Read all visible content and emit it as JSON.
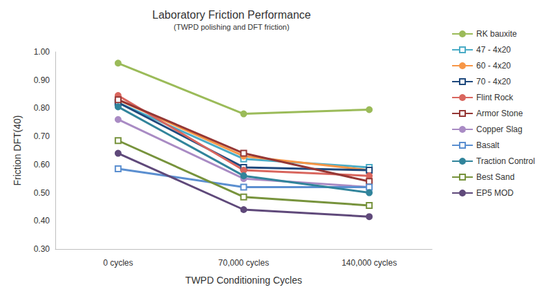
{
  "chart_data": {
    "type": "line",
    "title": "Laboratory Friction Performance",
    "subtitle": "(TWPD polishing and DFT friction)",
    "x_label": "TWPD Conditioning Cycles",
    "y_label": "Friction DFT(40)",
    "categories": [
      "0 cycles",
      "70,000 cycles",
      "140,000 cycles"
    ],
    "ylim": [
      0.3,
      1.0
    ],
    "yticks": [
      {
        "value": 0.3,
        "label": "0.30"
      },
      {
        "value": 0.4,
        "label": "0.40"
      },
      {
        "value": 0.5,
        "label": "0.50"
      },
      {
        "value": 0.6,
        "label": "0.60"
      },
      {
        "value": 0.7,
        "label": "0.70"
      },
      {
        "value": 0.8,
        "label": "0.80"
      },
      {
        "value": 0.9,
        "label": "0.90"
      },
      {
        "value": 1.0,
        "label": "1.00"
      }
    ],
    "grid": false,
    "legend": "right",
    "series": [
      {
        "name": "RK bauxite",
        "color": "#9bbb59",
        "marker": "circle",
        "values": [
          0.96,
          0.78,
          0.795
        ]
      },
      {
        "name": "47 - 4x20",
        "color": "#4bacc6",
        "marker": "square",
        "values": [
          0.82,
          0.62,
          0.59
        ]
      },
      {
        "name": "60 - 4x20",
        "color": "#f79646",
        "marker": "circle",
        "values": [
          0.83,
          0.63,
          0.58
        ]
      },
      {
        "name": "70 - 4x20",
        "color": "#1f497d",
        "marker": "square",
        "values": [
          0.82,
          0.59,
          0.58
        ]
      },
      {
        "name": "Flint Rock",
        "color": "#d9665e",
        "marker": "circle",
        "values": [
          0.845,
          0.58,
          0.56
        ]
      },
      {
        "name": "Armor Stone",
        "color": "#953735",
        "marker": "square",
        "values": [
          0.83,
          0.64,
          0.54
        ]
      },
      {
        "name": "Copper Slag",
        "color": "#a98bc4",
        "marker": "circle",
        "values": [
          0.76,
          0.55,
          0.52
        ]
      },
      {
        "name": "Basalt",
        "color": "#5b8fd0",
        "marker": "square",
        "values": [
          0.585,
          0.52,
          0.52
        ]
      },
      {
        "name": "Traction Control",
        "color": "#31849b",
        "marker": "circle",
        "values": [
          0.805,
          0.56,
          0.5
        ]
      },
      {
        "name": "Best Sand",
        "color": "#77933c",
        "marker": "square",
        "values": [
          0.685,
          0.485,
          0.455
        ]
      },
      {
        "name": "EP5 MOD",
        "color": "#5f497a",
        "marker": "circle",
        "values": [
          0.64,
          0.44,
          0.415
        ]
      }
    ]
  }
}
